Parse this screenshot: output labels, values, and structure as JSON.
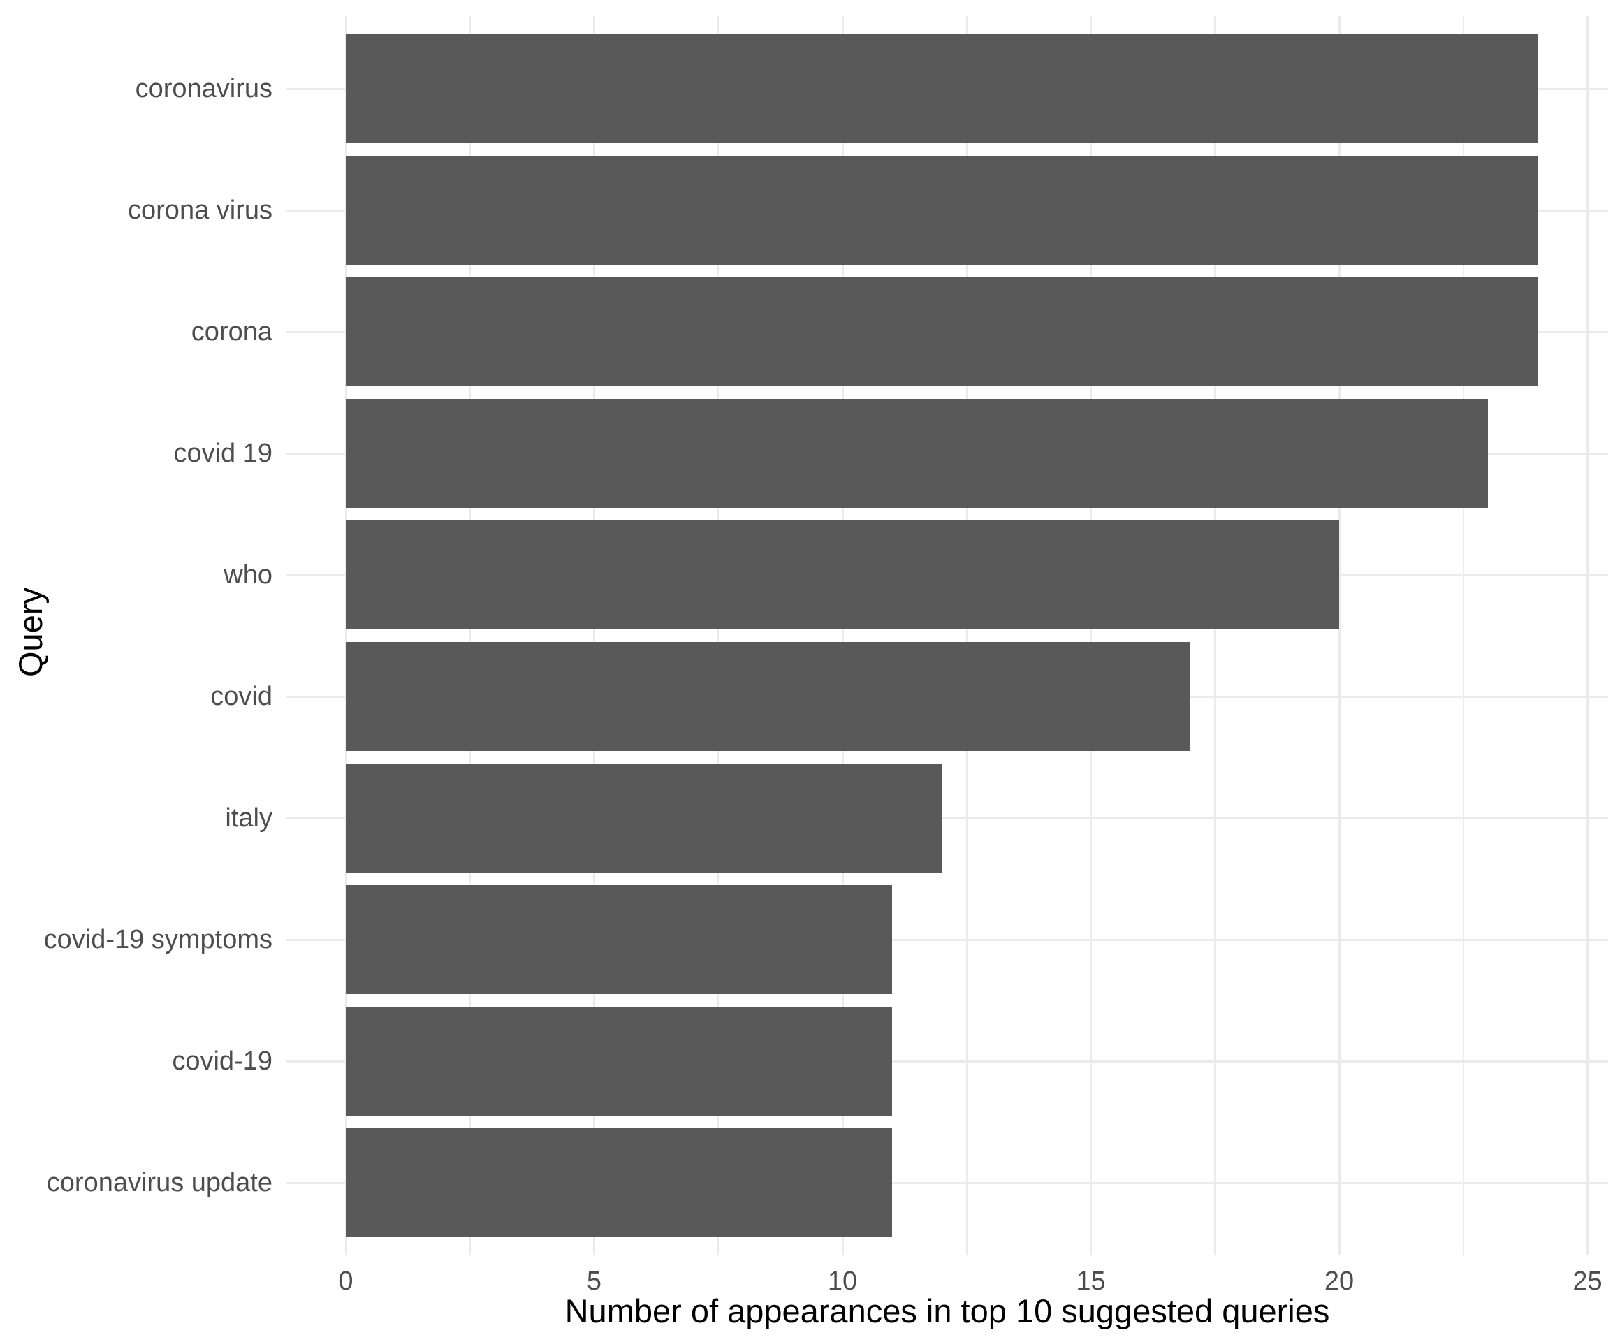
{
  "chart_data": {
    "type": "bar",
    "orientation": "horizontal",
    "title": "",
    "xlabel": "Number of appearances in top 10 suggested queries",
    "ylabel": "Query",
    "categories": [
      "coronavirus",
      "corona virus",
      "corona",
      "covid 19",
      "who",
      "covid",
      "italy",
      "covid-19 symptoms",
      "covid-19",
      "coronavirus update"
    ],
    "values": [
      24,
      24,
      24,
      23,
      20,
      17,
      12,
      11,
      11,
      11
    ],
    "xlim": [
      0,
      25
    ],
    "x_major_ticks": [
      0,
      5,
      10,
      15,
      20,
      25
    ],
    "x_tick_labels": [
      "0",
      "5",
      "10",
      "15",
      "20",
      "25"
    ],
    "x_minor_tick_step": 2.5,
    "grid": "on",
    "legend": "none",
    "bar_color": "#595959",
    "grid_major_color": "#EBEBEB",
    "grid_minor_color": "#EBEBEB",
    "axis_text_color": "#4D4D4D",
    "axis_title_color": "#000000",
    "background_color": "#FFFFFF"
  }
}
